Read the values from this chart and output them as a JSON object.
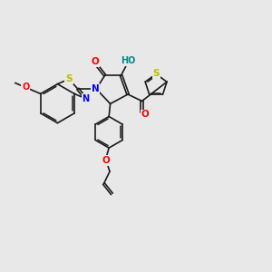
{
  "bg_color": "#e8e8e8",
  "bond_color": "#1a1a1a",
  "bond_width": 1.2,
  "atom_colors": {
    "O": "#ff0000",
    "N": "#0000ff",
    "S": "#bbbb00",
    "H": "#008888",
    "C": "#1a1a1a"
  },
  "font_size_atom": 7.5,
  "figsize": [
    3.0,
    3.0
  ],
  "dpi": 100,
  "xlim": [
    0,
    10
  ],
  "ylim": [
    0,
    10
  ]
}
